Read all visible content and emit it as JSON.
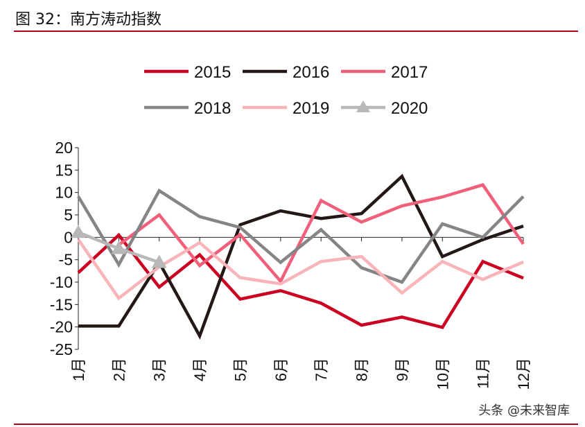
{
  "title": "图 32：南方涛动指数",
  "watermark": "头条 @未来智库",
  "chart_data": {
    "type": "line",
    "categories": [
      "1月",
      "2月",
      "3月",
      "4月",
      "5月",
      "6月",
      "7月",
      "8月",
      "9月",
      "10月",
      "11月",
      "12月"
    ],
    "ylim": [
      -25,
      20
    ],
    "yticks": [
      20,
      15,
      10,
      5,
      0,
      -5,
      -10,
      -15,
      -20,
      -25
    ],
    "grid": false,
    "legend": "top",
    "series": [
      {
        "name": "2015",
        "color": "#cc0020",
        "values": [
          -7.9,
          0.5,
          -11.1,
          -3.9,
          -13.8,
          -11.9,
          -14.7,
          -19.6,
          -17.8,
          -20.1,
          -5.4,
          -9.1
        ]
      },
      {
        "name": "2016",
        "color": "#231815",
        "values": [
          -19.8,
          -19.8,
          -5.6,
          -22.0,
          2.8,
          5.9,
          4.2,
          5.3,
          13.6,
          -4.3,
          -0.5,
          2.5
        ]
      },
      {
        "name": "2017",
        "color": "#f0607a",
        "values": [
          null,
          -1.7,
          5.0,
          -6.3,
          0.6,
          -9.8,
          8.2,
          3.4,
          7.0,
          9.0,
          11.7,
          -1.5
        ]
      },
      {
        "name": "2018",
        "color": "#858585",
        "values": [
          9.1,
          -6.1,
          10.4,
          4.6,
          2.2,
          -5.6,
          1.7,
          -6.8,
          -10.0,
          3.0,
          0.0,
          9.1
        ]
      },
      {
        "name": "2019",
        "color": "#f8b4b8",
        "values": [
          -0.5,
          -13.6,
          -6.6,
          -1.2,
          -9.0,
          -10.4,
          -5.4,
          -4.3,
          -12.4,
          -5.4,
          -9.4,
          -5.5
        ]
      },
      {
        "name": "2020",
        "color": "#b8b8b8",
        "marker": "triangle",
        "values": [
          1.1,
          -2.5,
          -5.6,
          null,
          null,
          null,
          null,
          null,
          null,
          null,
          null,
          null
        ]
      }
    ]
  }
}
